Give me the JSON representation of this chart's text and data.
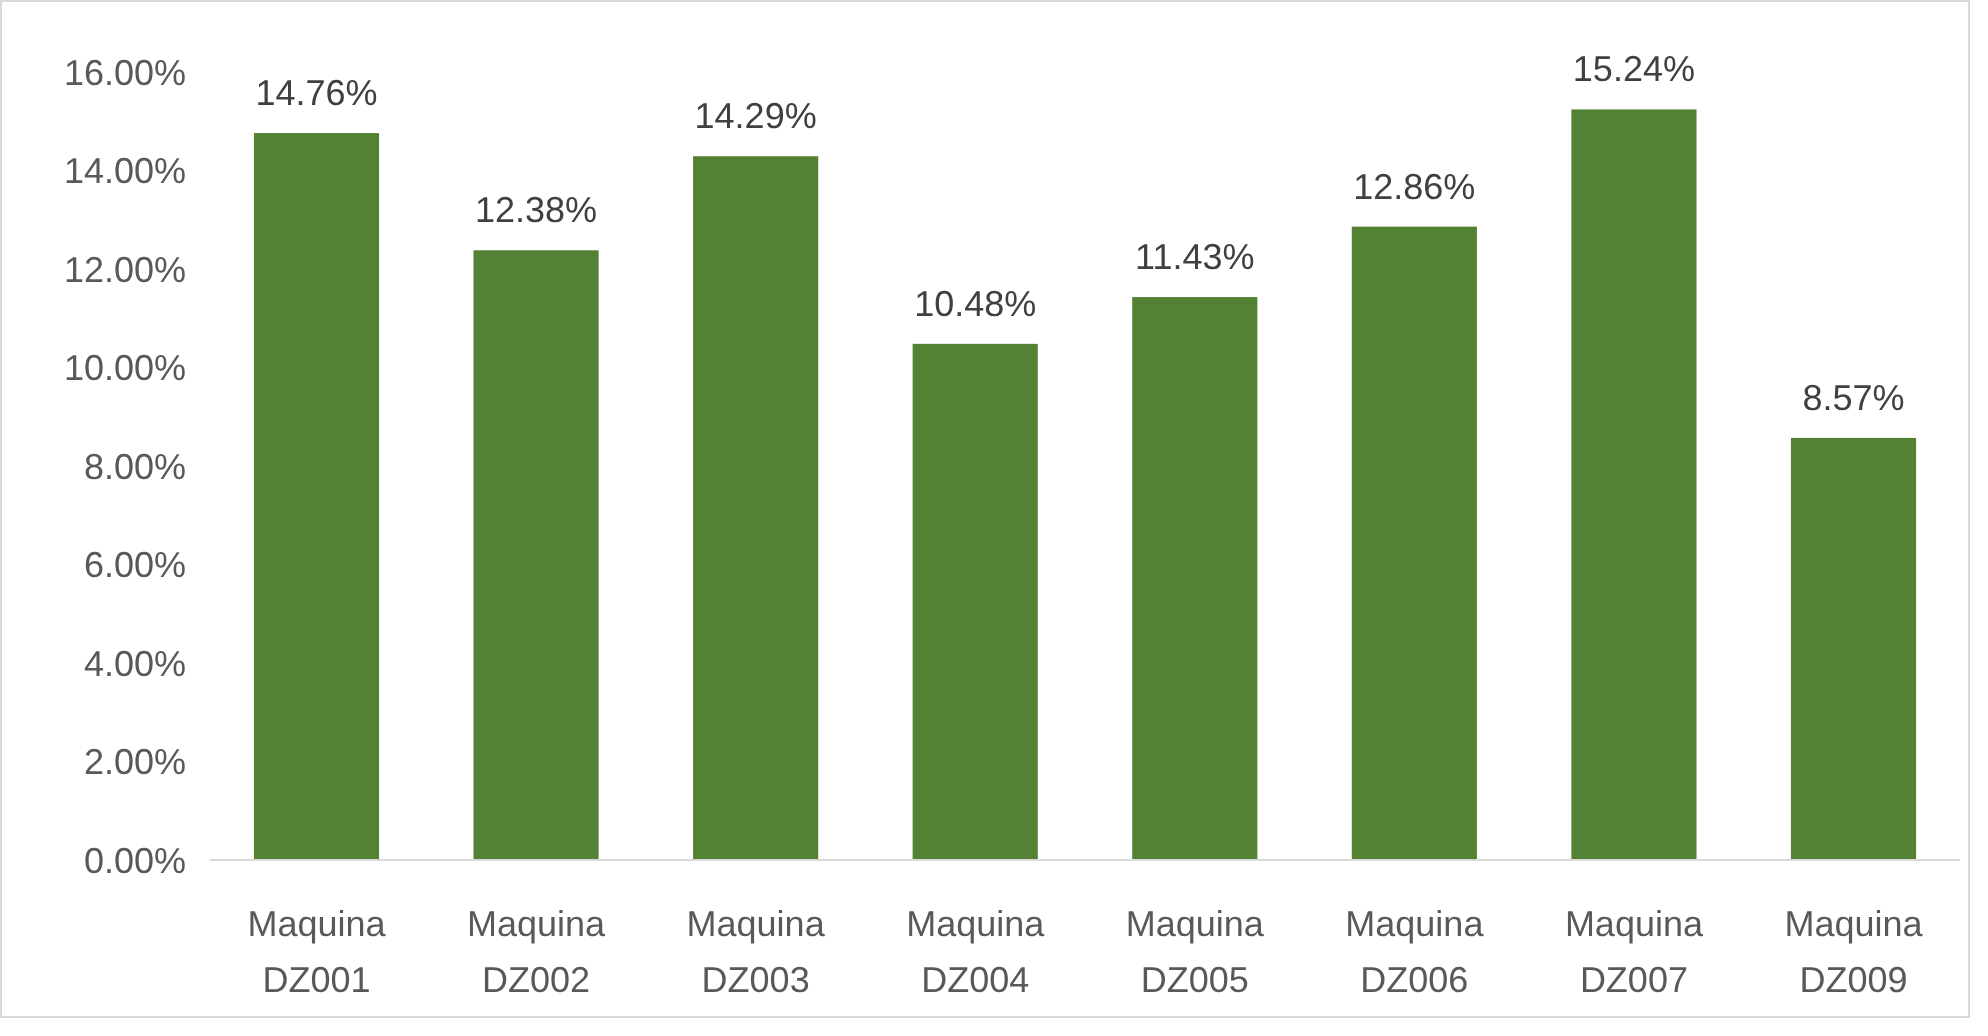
{
  "chart_data": {
    "type": "bar",
    "categories": [
      "Maquina DZ001",
      "Maquina DZ002",
      "Maquina DZ003",
      "Maquina DZ004",
      "Maquina DZ005",
      "Maquina DZ006",
      "Maquina DZ007",
      "Maquina DZ009"
    ],
    "values": [
      14.76,
      12.38,
      14.29,
      10.48,
      11.43,
      12.86,
      15.24,
      8.57
    ],
    "value_labels": [
      "14.76%",
      "12.38%",
      "14.29%",
      "10.48%",
      "11.43%",
      "12.86%",
      "15.24%",
      "8.57%"
    ],
    "color": "#548235",
    "ylim": [
      0,
      16
    ],
    "yticks": [
      {
        "value": 0,
        "label": "0.00%"
      },
      {
        "value": 2,
        "label": "2.00%"
      },
      {
        "value": 4,
        "label": "4.00%"
      },
      {
        "value": 6,
        "label": "6.00%"
      },
      {
        "value": 8,
        "label": "8.00%"
      },
      {
        "value": 10,
        "label": "10.00%"
      },
      {
        "value": 12,
        "label": "12.00%"
      },
      {
        "value": 14,
        "label": "14.00%"
      },
      {
        "value": 16,
        "label": "16.00%"
      }
    ],
    "grid": false
  }
}
